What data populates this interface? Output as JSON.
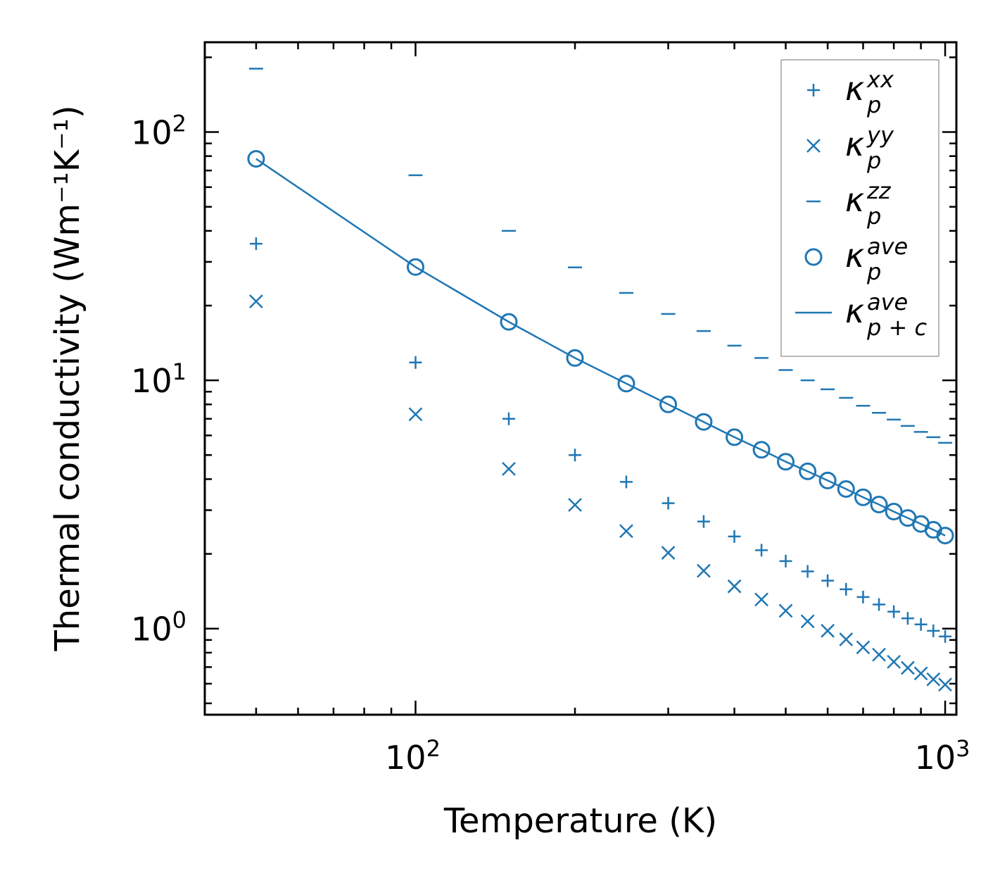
{
  "chart_data": {
    "type": "scatter",
    "xscale": "log",
    "yscale": "log",
    "xlabel": "Temperature (K)",
    "ylabel": "Thermal conductivity (Wm⁻¹K⁻¹)",
    "xlim": [
      40,
      1050
    ],
    "ylim": [
      0.45,
      230
    ],
    "x_ticks": [
      {
        "base": "10",
        "exp": "2",
        "value": 100
      },
      {
        "base": "10",
        "exp": "3",
        "value": 1000
      }
    ],
    "y_ticks": [
      {
        "base": "10",
        "exp": "0",
        "value": 1
      },
      {
        "base": "10",
        "exp": "1",
        "value": 10
      },
      {
        "base": "10",
        "exp": "2",
        "value": 100
      }
    ],
    "color": "#1f77b4",
    "legend_position": "top-right",
    "x": [
      50,
      100,
      150,
      200,
      250,
      300,
      350,
      400,
      450,
      500,
      550,
      600,
      650,
      700,
      750,
      800,
      850,
      900,
      950,
      1000
    ],
    "series": [
      {
        "name": "kappa_p^xx",
        "base": "κ",
        "sub": "p",
        "sup": "xx",
        "marker": "plus",
        "values": [
          35.5,
          11.8,
          7.0,
          5.0,
          3.9,
          3.2,
          2.7,
          2.35,
          2.07,
          1.87,
          1.7,
          1.56,
          1.44,
          1.34,
          1.25,
          1.17,
          1.1,
          1.04,
          0.98,
          0.93
        ]
      },
      {
        "name": "kappa_p^yy",
        "base": "κ",
        "sub": "p",
        "sup": "yy",
        "marker": "x",
        "values": [
          20.8,
          7.3,
          4.4,
          3.15,
          2.47,
          2.02,
          1.71,
          1.48,
          1.31,
          1.18,
          1.07,
          0.98,
          0.905,
          0.84,
          0.785,
          0.735,
          0.695,
          0.66,
          0.625,
          0.595
        ]
      },
      {
        "name": "kappa_p^zz",
        "base": "κ",
        "sub": "p",
        "sup": "zz",
        "marker": "hline",
        "values": [
          180,
          67,
          40,
          28.5,
          22.5,
          18.5,
          15.8,
          13.8,
          12.3,
          11.0,
          10.0,
          9.2,
          8.5,
          7.9,
          7.4,
          6.95,
          6.55,
          6.2,
          5.9,
          5.6
        ]
      },
      {
        "name": "kappa_p^ave",
        "base": "κ",
        "sub": "p",
        "sup": "ave",
        "marker": "circle",
        "values": [
          78,
          28.6,
          17.2,
          12.3,
          9.7,
          8.0,
          6.8,
          5.9,
          5.25,
          4.7,
          4.3,
          3.95,
          3.65,
          3.38,
          3.16,
          2.96,
          2.79,
          2.64,
          2.5,
          2.37
        ]
      },
      {
        "name": "kappa_p+c^ave",
        "base": "κ",
        "sub": "p + c",
        "sup": "ave",
        "marker": "line",
        "values": [
          78,
          28.6,
          17.2,
          12.3,
          9.7,
          8.0,
          6.8,
          5.9,
          5.25,
          4.7,
          4.3,
          3.95,
          3.65,
          3.38,
          3.16,
          2.96,
          2.79,
          2.64,
          2.5,
          2.37
        ]
      }
    ]
  }
}
